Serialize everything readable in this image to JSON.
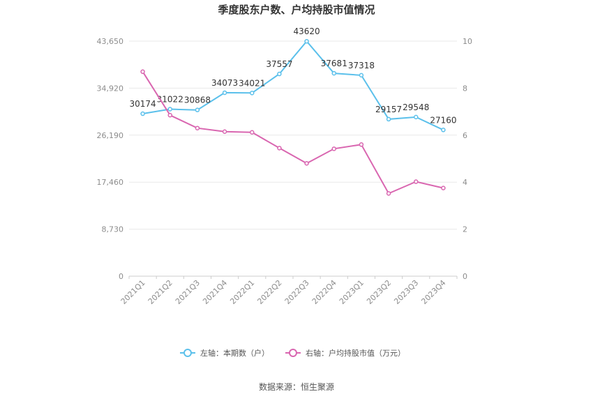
{
  "chart_data": {
    "type": "line",
    "title": "季度股东户数、户均持股市值情况",
    "categories": [
      "2021Q1",
      "2021Q2",
      "2021Q3",
      "2021Q4",
      "2022Q1",
      "2022Q2",
      "2022Q3",
      "2022Q4",
      "2023Q1",
      "2023Q2",
      "2023Q3",
      "2023Q4"
    ],
    "left_axis": {
      "ticks": [
        "0",
        "8,730",
        "17,460",
        "26,190",
        "34,920",
        "43,650"
      ],
      "ylim": [
        0,
        43650
      ]
    },
    "right_axis": {
      "ticks": [
        "0",
        "2",
        "4",
        "6",
        "8",
        "10"
      ],
      "ylim": [
        0,
        10
      ]
    },
    "series": [
      {
        "name": "左轴：本期数（户）",
        "axis": "left",
        "color": "#5bc0eb",
        "values": [
          30174,
          31022,
          30868,
          34073,
          34021,
          37557,
          43620,
          37681,
          37318,
          29157,
          29548,
          27160
        ],
        "labels": [
          "30174",
          "31022",
          "30868",
          "34073",
          "34021",
          "37557",
          "43620",
          "37681",
          "37318",
          "29157",
          "29548",
          "27160"
        ]
      },
      {
        "name": "右轴：户均持股市值（万元）",
        "axis": "right",
        "color": "#d966b0",
        "values": [
          8.7,
          6.85,
          6.3,
          6.15,
          6.12,
          5.45,
          4.8,
          5.42,
          5.6,
          3.52,
          4.02,
          3.75
        ]
      }
    ],
    "grid": true,
    "legend_position": "bottom"
  },
  "source": "数据来源：恒生聚源"
}
